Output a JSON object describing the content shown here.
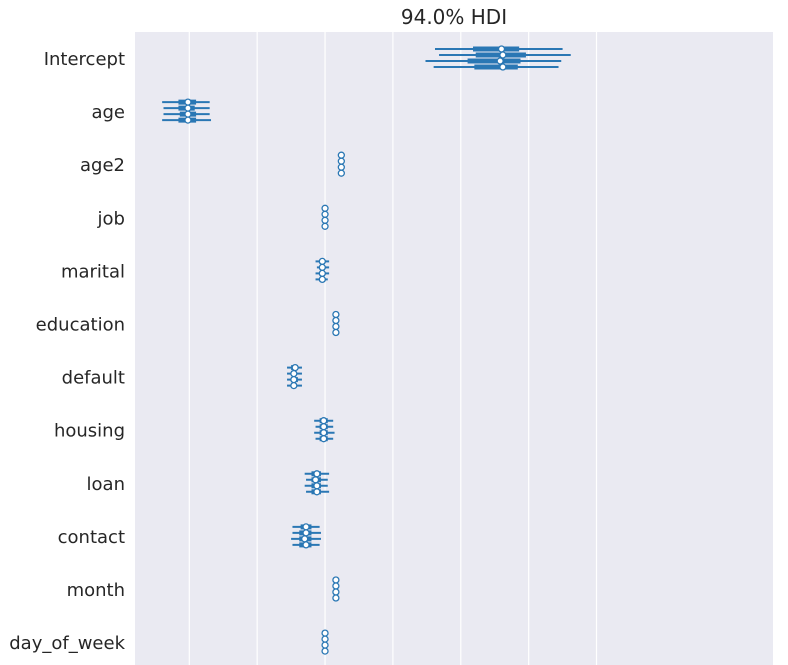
{
  "chart_data": {
    "type": "forest",
    "title": "94.0% HDI",
    "xlabel": "",
    "ylabel": "",
    "xlim": [
      -1.4,
      3.3
    ],
    "x_gridlines": [
      -1,
      -0.5,
      0,
      0.5,
      1,
      1.5,
      2
    ],
    "xticks_visible": false,
    "chains": 4,
    "colors": {
      "background": "#eaeaf2",
      "grid": "#ffffff",
      "series": "#2a77b4",
      "marker_fill": "#ffffff",
      "text": "#262626"
    },
    "variables": [
      {
        "name": "Intercept",
        "chains": [
          {
            "mean": 1.3,
            "iqr": [
              1.09,
              1.43
            ],
            "hdi": [
              0.81,
              1.75
            ]
          },
          {
            "mean": 1.31,
            "iqr": [
              1.11,
              1.48
            ],
            "hdi": [
              0.84,
              1.81
            ]
          },
          {
            "mean": 1.29,
            "iqr": [
              1.05,
              1.44
            ],
            "hdi": [
              0.74,
              1.74
            ]
          },
          {
            "mean": 1.31,
            "iqr": [
              1.1,
              1.42
            ],
            "hdi": [
              0.8,
              1.72
            ]
          }
        ]
      },
      {
        "name": "age",
        "chains": [
          {
            "mean": -1.01,
            "iqr": [
              -1.08,
              -0.95
            ],
            "hdi": [
              -1.2,
              -0.85
            ]
          },
          {
            "mean": -1.01,
            "iqr": [
              -1.08,
              -0.96
            ],
            "hdi": [
              -1.19,
              -0.85
            ]
          },
          {
            "mean": -1.01,
            "iqr": [
              -1.07,
              -0.95
            ],
            "hdi": [
              -1.19,
              -0.85
            ]
          },
          {
            "mean": -1.01,
            "iqr": [
              -1.08,
              -0.95
            ],
            "hdi": [
              -1.2,
              -0.84
            ]
          }
        ]
      },
      {
        "name": "age2",
        "chains": [
          {
            "mean": 0.12,
            "iqr": [
              0.12,
              0.12
            ],
            "hdi": [
              0.12,
              0.12
            ]
          },
          {
            "mean": 0.12,
            "iqr": [
              0.12,
              0.12
            ],
            "hdi": [
              0.12,
              0.12
            ]
          },
          {
            "mean": 0.12,
            "iqr": [
              0.12,
              0.12
            ],
            "hdi": [
              0.12,
              0.12
            ]
          },
          {
            "mean": 0.12,
            "iqr": [
              0.12,
              0.12
            ],
            "hdi": [
              0.12,
              0.12
            ]
          }
        ]
      },
      {
        "name": "job",
        "chains": [
          {
            "mean": 0.0,
            "iqr": [
              0.0,
              0.0
            ],
            "hdi": [
              0.0,
              0.0
            ]
          },
          {
            "mean": 0.0,
            "iqr": [
              0.0,
              0.0
            ],
            "hdi": [
              0.0,
              0.0
            ]
          },
          {
            "mean": 0.0,
            "iqr": [
              0.0,
              0.0
            ],
            "hdi": [
              0.0,
              0.0
            ]
          },
          {
            "mean": 0.0,
            "iqr": [
              0.0,
              0.0
            ],
            "hdi": [
              0.0,
              0.0
            ]
          }
        ]
      },
      {
        "name": "marital",
        "chains": [
          {
            "mean": -0.02,
            "iqr": [
              -0.04,
              0.0
            ],
            "hdi": [
              -0.07,
              0.03
            ]
          },
          {
            "mean": -0.02,
            "iqr": [
              -0.04,
              0.0
            ],
            "hdi": [
              -0.06,
              0.03
            ]
          },
          {
            "mean": -0.02,
            "iqr": [
              -0.04,
              0.0
            ],
            "hdi": [
              -0.07,
              0.03
            ]
          },
          {
            "mean": -0.02,
            "iqr": [
              -0.04,
              0.0
            ],
            "hdi": [
              -0.07,
              0.02
            ]
          }
        ]
      },
      {
        "name": "education",
        "chains": [
          {
            "mean": 0.08,
            "iqr": [
              0.08,
              0.08
            ],
            "hdi": [
              0.08,
              0.08
            ]
          },
          {
            "mean": 0.08,
            "iqr": [
              0.08,
              0.08
            ],
            "hdi": [
              0.08,
              0.08
            ]
          },
          {
            "mean": 0.08,
            "iqr": [
              0.08,
              0.08
            ],
            "hdi": [
              0.08,
              0.08
            ]
          },
          {
            "mean": 0.08,
            "iqr": [
              0.08,
              0.08
            ],
            "hdi": [
              0.08,
              0.08
            ]
          }
        ]
      },
      {
        "name": "default",
        "chains": [
          {
            "mean": -0.22,
            "iqr": [
              -0.25,
              -0.2
            ],
            "hdi": [
              -0.28,
              -0.17
            ]
          },
          {
            "mean": -0.23,
            "iqr": [
              -0.25,
              -0.21
            ],
            "hdi": [
              -0.28,
              -0.17
            ]
          },
          {
            "mean": -0.23,
            "iqr": [
              -0.25,
              -0.2
            ],
            "hdi": [
              -0.28,
              -0.17
            ]
          },
          {
            "mean": -0.23,
            "iqr": [
              -0.25,
              -0.21
            ],
            "hdi": [
              -0.28,
              -0.17
            ]
          }
        ]
      },
      {
        "name": "housing",
        "chains": [
          {
            "mean": -0.01,
            "iqr": [
              -0.04,
              0.02
            ],
            "hdi": [
              -0.08,
              0.06
            ]
          },
          {
            "mean": -0.01,
            "iqr": [
              -0.04,
              0.02
            ],
            "hdi": [
              -0.07,
              0.06
            ]
          },
          {
            "mean": -0.01,
            "iqr": [
              -0.04,
              0.02
            ],
            "hdi": [
              -0.08,
              0.07
            ]
          },
          {
            "mean": -0.01,
            "iqr": [
              -0.04,
              0.02
            ],
            "hdi": [
              -0.07,
              0.06
            ]
          }
        ]
      },
      {
        "name": "loan",
        "chains": [
          {
            "mean": -0.06,
            "iqr": [
              -0.1,
              -0.03
            ],
            "hdi": [
              -0.15,
              0.03
            ]
          },
          {
            "mean": -0.07,
            "iqr": [
              -0.1,
              -0.03
            ],
            "hdi": [
              -0.14,
              0.02
            ]
          },
          {
            "mean": -0.06,
            "iqr": [
              -0.1,
              -0.03
            ],
            "hdi": [
              -0.15,
              0.02
            ]
          },
          {
            "mean": -0.06,
            "iqr": [
              -0.1,
              -0.03
            ],
            "hdi": [
              -0.14,
              0.03
            ]
          }
        ]
      },
      {
        "name": "contact",
        "chains": [
          {
            "mean": -0.14,
            "iqr": [
              -0.18,
              -0.1
            ],
            "hdi": [
              -0.24,
              -0.04
            ]
          },
          {
            "mean": -0.14,
            "iqr": [
              -0.19,
              -0.1
            ],
            "hdi": [
              -0.24,
              -0.03
            ]
          },
          {
            "mean": -0.15,
            "iqr": [
              -0.19,
              -0.1
            ],
            "hdi": [
              -0.25,
              -0.03
            ]
          },
          {
            "mean": -0.14,
            "iqr": [
              -0.19,
              -0.1
            ],
            "hdi": [
              -0.24,
              -0.04
            ]
          }
        ]
      },
      {
        "name": "month",
        "chains": [
          {
            "mean": 0.08,
            "iqr": [
              0.08,
              0.08
            ],
            "hdi": [
              0.08,
              0.08
            ]
          },
          {
            "mean": 0.08,
            "iqr": [
              0.08,
              0.08
            ],
            "hdi": [
              0.08,
              0.08
            ]
          },
          {
            "mean": 0.08,
            "iqr": [
              0.08,
              0.08
            ],
            "hdi": [
              0.08,
              0.08
            ]
          },
          {
            "mean": 0.08,
            "iqr": [
              0.08,
              0.08
            ],
            "hdi": [
              0.08,
              0.08
            ]
          }
        ]
      },
      {
        "name": "day_of_week",
        "chains": [
          {
            "mean": 0.0,
            "iqr": [
              0.0,
              0.0
            ],
            "hdi": [
              0.0,
              0.0
            ]
          },
          {
            "mean": 0.0,
            "iqr": [
              0.0,
              0.0
            ],
            "hdi": [
              0.0,
              0.0
            ]
          },
          {
            "mean": 0.0,
            "iqr": [
              0.0,
              0.0
            ],
            "hdi": [
              0.0,
              0.0
            ]
          },
          {
            "mean": 0.0,
            "iqr": [
              0.0,
              0.0
            ],
            "hdi": [
              0.0,
              0.0
            ]
          }
        ]
      }
    ]
  }
}
